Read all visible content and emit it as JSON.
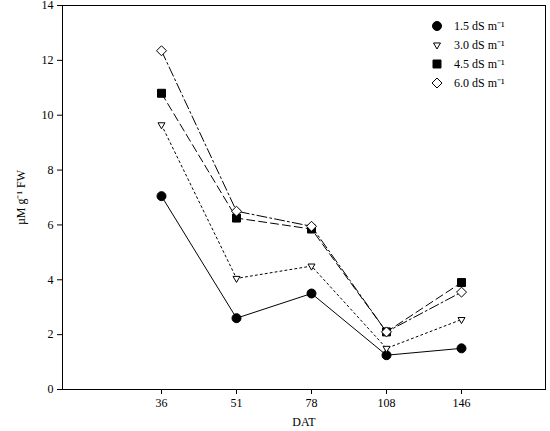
{
  "chart_data": {
    "type": "line",
    "xlabel": "DAT",
    "ylabel": "µM g⁻¹ FW",
    "categories": [
      "36",
      "51",
      "78",
      "108",
      "146"
    ],
    "ylim": [
      0,
      14
    ],
    "yticks": [
      0,
      2,
      4,
      6,
      8,
      10,
      12,
      14
    ],
    "grid": false,
    "legend": "top-right",
    "series": [
      {
        "name": "1.5 dS m⁻¹",
        "color": "#000000",
        "marker": "circle",
        "line_style": "solid",
        "values": [
          7.05,
          2.6,
          3.5,
          1.25,
          1.5
        ]
      },
      {
        "name": "3.0 dS m⁻¹",
        "color": "#000000",
        "marker": "triangle-down-open",
        "line_style": "dotted",
        "values": [
          9.65,
          4.05,
          4.5,
          1.5,
          2.55
        ]
      },
      {
        "name": "4.5 dS m⁻¹",
        "color": "#000000",
        "marker": "square",
        "line_style": "dashed",
        "values": [
          10.8,
          6.25,
          5.85,
          2.1,
          3.9
        ]
      },
      {
        "name": "6.0 dS m⁻¹",
        "color": "#000000",
        "marker": "diamond-open",
        "line_style": "dashdot",
        "values": [
          12.35,
          6.5,
          5.95,
          2.1,
          3.55
        ]
      }
    ]
  }
}
